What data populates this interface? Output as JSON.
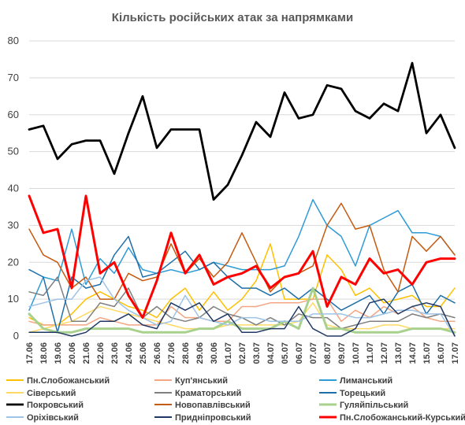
{
  "chart_data": {
    "type": "line",
    "title": "Кількість російських атак за напрямками",
    "xlabel": "",
    "ylabel": "",
    "ylim": [
      0,
      80
    ],
    "yticks": [
      "0",
      "10",
      "20",
      "30",
      "40",
      "50",
      "60",
      "70",
      "80"
    ],
    "grid": "horizontal",
    "legend_position": "bottom",
    "x": [
      "17.06",
      "18.06",
      "19.06",
      "20.06",
      "21.06",
      "22.06",
      "23.06",
      "24.06",
      "25.06",
      "26.06",
      "27.06",
      "28.06",
      "29.06",
      "30.06",
      "01.07",
      "02.07",
      "03.07",
      "04.07",
      "05.07",
      "06.07",
      "07.07",
      "08.07",
      "09.07",
      "10.07",
      "11.07",
      "12.07",
      "13.07",
      "14.07",
      "15.07",
      "16.07",
      "17.07"
    ],
    "series": [
      {
        "name": "Пн.Слобожанський",
        "color": "#FFC000",
        "width": 1.5,
        "values": [
          5,
          3,
          3,
          6,
          10,
          12,
          10,
          8,
          7,
          5,
          10,
          13,
          7,
          12,
          7,
          10,
          15,
          25,
          10,
          10,
          10,
          22,
          18,
          11,
          13,
          9,
          10,
          11,
          8,
          8,
          13
        ]
      },
      {
        "name": "Куп'янський",
        "color": "#F4A582",
        "width": 1.5,
        "values": [
          4,
          3,
          3,
          3,
          3,
          5,
          4,
          3,
          3,
          3,
          8,
          5,
          5,
          4,
          4,
          8,
          8,
          9,
          9,
          9,
          10,
          10,
          4,
          7,
          5,
          8,
          6,
          8,
          5,
          4,
          4
        ]
      },
      {
        "name": "Лиманський",
        "color": "#2E9BD6",
        "width": 1.5,
        "values": [
          7,
          16,
          15,
          29,
          14,
          21,
          17,
          24,
          18,
          17,
          18,
          17,
          18,
          20,
          19,
          18,
          18,
          18,
          19,
          27,
          37,
          30,
          27,
          19,
          30,
          32,
          34,
          28,
          28,
          27,
          22
        ]
      },
      {
        "name": "Сіверський",
        "color": "#FFD966",
        "width": 1.5,
        "values": [
          1,
          2,
          3,
          4,
          6,
          8,
          7,
          6,
          5,
          4,
          3,
          2,
          2,
          2,
          3,
          3,
          3,
          3,
          3,
          4,
          9,
          3,
          2,
          2,
          2,
          3,
          3,
          2,
          2,
          2,
          2
        ]
      },
      {
        "name": "Краматорський",
        "color": "#7F7F7F",
        "width": 1.5,
        "values": [
          12,
          11,
          16,
          4,
          4,
          9,
          8,
          13,
          5,
          8,
          5,
          4,
          5,
          8,
          6,
          5,
          3,
          5,
          3,
          6,
          5,
          5,
          2,
          3,
          4,
          4,
          4,
          6,
          5,
          6,
          5
        ]
      },
      {
        "name": "Торецький",
        "color": "#1F6FA8",
        "width": 1.5,
        "values": [
          18,
          16,
          1,
          16,
          13,
          14,
          22,
          27,
          16,
          17,
          20,
          23,
          18,
          20,
          16,
          13,
          13,
          11,
          13,
          10,
          13,
          10,
          7,
          9,
          11,
          6,
          12,
          14,
          6,
          11,
          9
        ]
      },
      {
        "name": "Покровський",
        "color": "#000000",
        "width": 2.8,
        "values": [
          56,
          57,
          48,
          52,
          53,
          53,
          44,
          55,
          65,
          51,
          56,
          56,
          56,
          37,
          41,
          49,
          58,
          54,
          66,
          59,
          60,
          68,
          67,
          61,
          59,
          63,
          61,
          74,
          55,
          60,
          51
        ]
      },
      {
        "name": "Новопавлівський",
        "color": "#C55A11",
        "width": 1.5,
        "values": [
          29,
          22,
          20,
          13,
          16,
          10,
          10,
          17,
          15,
          16,
          25,
          17,
          21,
          16,
          20,
          28,
          20,
          12,
          16,
          17,
          19,
          30,
          36,
          29,
          30,
          18,
          12,
          27,
          23,
          27,
          22
        ]
      },
      {
        "name": "Гуляйпільський",
        "color": "#A9D18E",
        "width": 3,
        "values": [
          6,
          2,
          1,
          1,
          2,
          2,
          2,
          2,
          1,
          1,
          1,
          1,
          2,
          2,
          4,
          2,
          2,
          2,
          4,
          2,
          13,
          2,
          2,
          1,
          1,
          1,
          1,
          2,
          2,
          2,
          1
        ]
      },
      {
        "name": "Оріхівський",
        "color": "#9DC3E6",
        "width": 1.5,
        "values": [
          8,
          9,
          10,
          10,
          15,
          16,
          10,
          7,
          5,
          3,
          4,
          11,
          5,
          4,
          3,
          5,
          5,
          4,
          4,
          4,
          6,
          6,
          6,
          5,
          5,
          6,
          7,
          7,
          6,
          6,
          0
        ]
      },
      {
        "name": "Придніпровський",
        "color": "#203864",
        "width": 1.5,
        "values": [
          1,
          1,
          1,
          0,
          1,
          4,
          4,
          6,
          3,
          2,
          9,
          7,
          9,
          4,
          6,
          1,
          1,
          2,
          2,
          8,
          2,
          0,
          0,
          2,
          9,
          10,
          6,
          8,
          9,
          8,
          0
        ]
      },
      {
        "name": "Пн.Слобожанський-Курський",
        "color": "#FF0000",
        "width": 3,
        "values": [
          38,
          28,
          29,
          13,
          38,
          17,
          20,
          11,
          5,
          15,
          28,
          17,
          22,
          14,
          16,
          17,
          19,
          13,
          16,
          17,
          23,
          8,
          16,
          14,
          21,
          17,
          18,
          14,
          20,
          21,
          21
        ]
      }
    ]
  }
}
